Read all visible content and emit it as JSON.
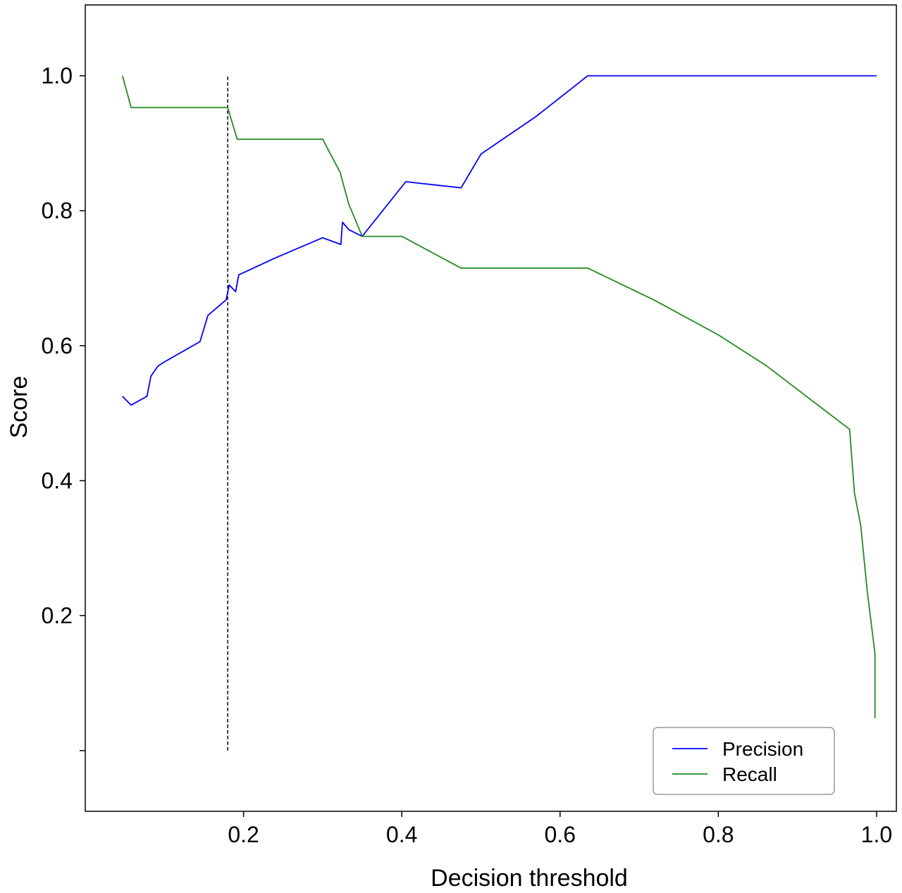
{
  "chart_data": {
    "type": "line",
    "title": "",
    "xlabel": "Decision threshold",
    "ylabel": "Score",
    "xlim": [
      0.0,
      1.025
    ],
    "ylim": [
      -0.09,
      1.105
    ],
    "xticks": [
      {
        "value": 0.2,
        "label": "0.2"
      },
      {
        "value": 0.4,
        "label": "0.4"
      },
      {
        "value": 0.6,
        "label": "0.6"
      },
      {
        "value": 0.8,
        "label": "0.8"
      },
      {
        "value": 1.0,
        "label": "1.0"
      }
    ],
    "yticks": [
      {
        "value": 0.0,
        "label": ""
      },
      {
        "value": 0.2,
        "label": "0.2"
      },
      {
        "value": 0.4,
        "label": "0.4"
      },
      {
        "value": 0.6,
        "label": "0.6"
      },
      {
        "value": 0.8,
        "label": "0.8"
      },
      {
        "value": 1.0,
        "label": "1.0"
      }
    ],
    "grid": false,
    "legend_position": "bottom-right",
    "series": [
      {
        "name": "Precision",
        "color": "#0000ff",
        "x": [
          0.047,
          0.058,
          0.078,
          0.083,
          0.092,
          0.1,
          0.145,
          0.155,
          0.178,
          0.182,
          0.19,
          0.194,
          0.24,
          0.3,
          0.323,
          0.325,
          0.333,
          0.35,
          0.405,
          0.475,
          0.5,
          0.57,
          0.635,
          1.0
        ],
        "y": [
          0.525,
          0.512,
          0.525,
          0.555,
          0.57,
          0.576,
          0.606,
          0.645,
          0.668,
          0.69,
          0.68,
          0.705,
          0.73,
          0.76,
          0.75,
          0.783,
          0.772,
          0.762,
          0.843,
          0.834,
          0.884,
          0.94,
          1.0,
          1.0
        ]
      },
      {
        "name": "Recall",
        "color": "#228b22",
        "x": [
          0.047,
          0.058,
          0.18,
          0.192,
          0.3,
          0.322,
          0.333,
          0.35,
          0.4,
          0.475,
          0.635,
          0.72,
          0.8,
          0.86,
          0.966,
          0.972,
          0.98,
          0.988,
          0.998,
          0.998
        ],
        "y": [
          1.0,
          0.953,
          0.953,
          0.906,
          0.906,
          0.857,
          0.81,
          0.762,
          0.762,
          0.715,
          0.715,
          0.667,
          0.616,
          0.571,
          0.476,
          0.382,
          0.333,
          0.238,
          0.143,
          0.048
        ]
      }
    ],
    "threshold_marker": {
      "x": 0.18,
      "y_from": 0.0,
      "y_to": 1.0,
      "style": "dashed",
      "color": "#000000"
    }
  }
}
